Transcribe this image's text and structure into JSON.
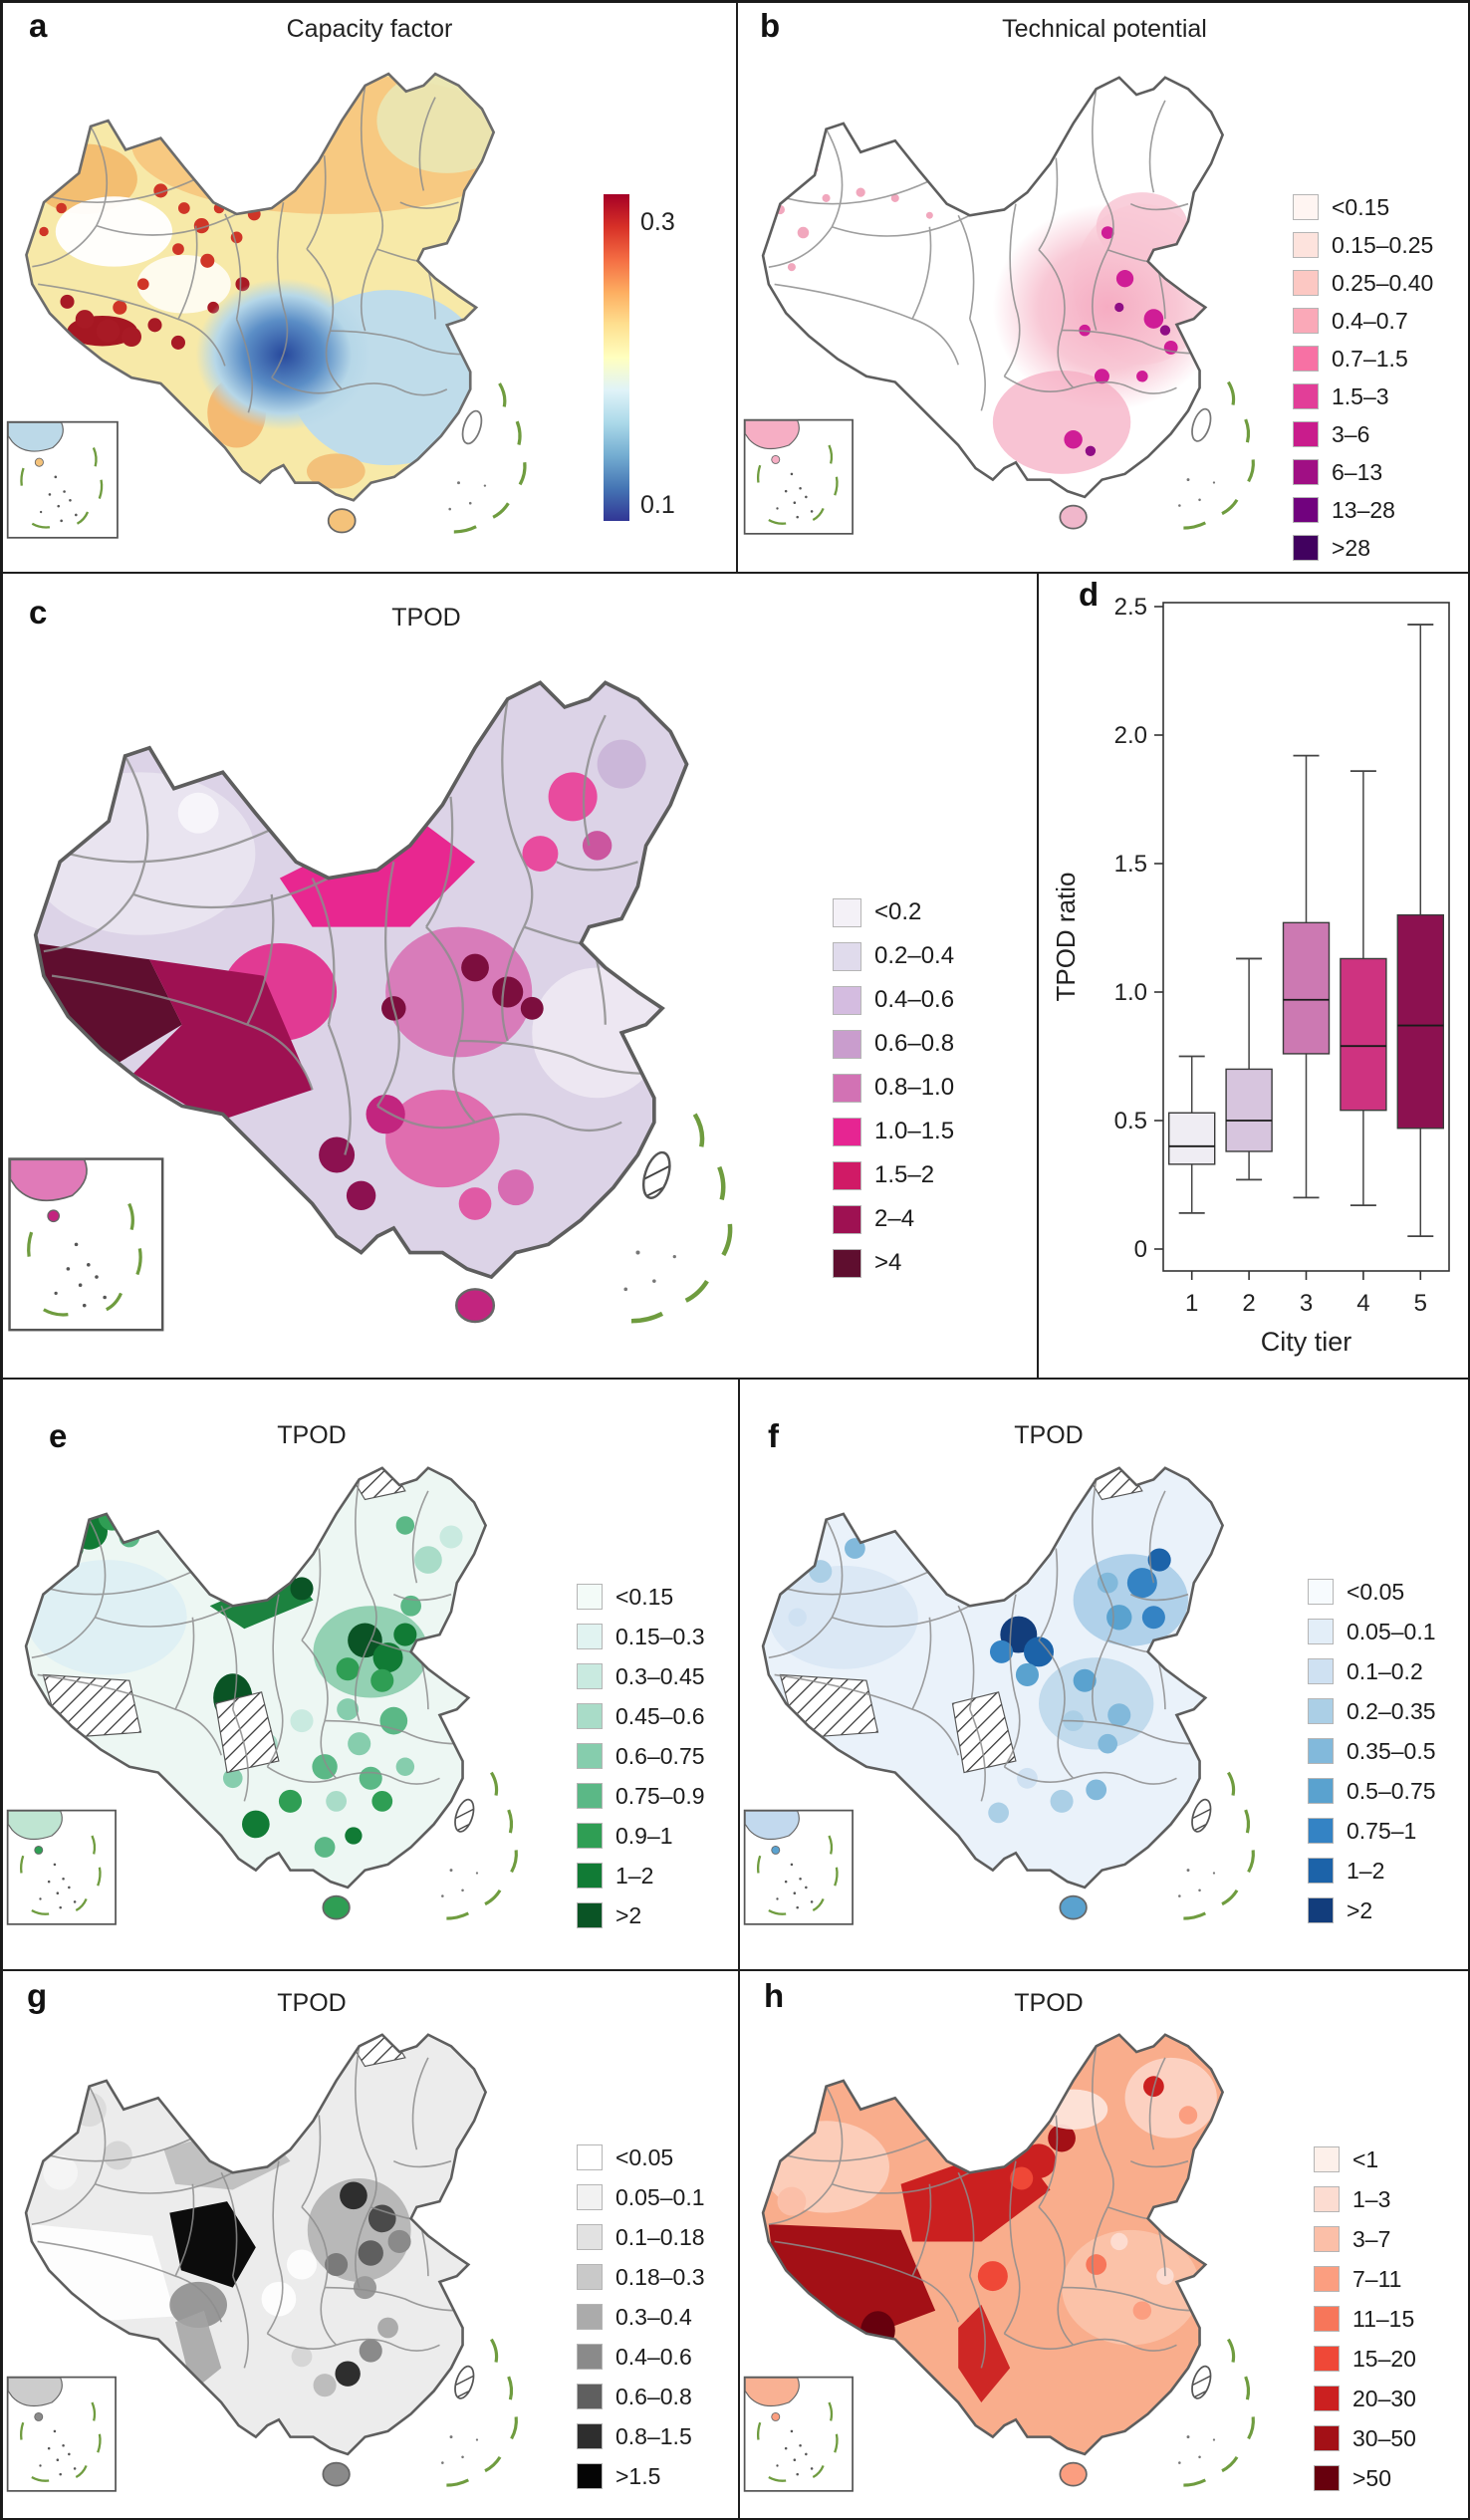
{
  "figure_caption": "",
  "panels": {
    "a": {
      "letter": "a",
      "title": "Capacity factor",
      "colorbar": {
        "top_label": "0.3",
        "bottom_label": "0.1",
        "min": 0.1,
        "max": 0.3,
        "colors": [
          "#a50026",
          "#d73027",
          "#f46d43",
          "#fdae61",
          "#fee090",
          "#ffffbf",
          "#e0f3f8",
          "#abd9e9",
          "#74add1",
          "#4575b4",
          "#313695"
        ]
      }
    },
    "b": {
      "letter": "b",
      "title": "Technical potential",
      "legend": [
        {
          "label": "<0.15",
          "color": "#fff5f2"
        },
        {
          "label": "0.15–0.25",
          "color": "#fde3dd"
        },
        {
          "label": "0.25–0.40",
          "color": "#fcc8c3"
        },
        {
          "label": "0.4–0.7",
          "color": "#faa9b8"
        },
        {
          "label": "0.7–1.5",
          "color": "#f771a4"
        },
        {
          "label": "1.5–3",
          "color": "#e23e98"
        },
        {
          "label": "3–6",
          "color": "#c91c8c"
        },
        {
          "label": "6–13",
          "color": "#a00f84"
        },
        {
          "label": "13–28",
          "color": "#71027e"
        },
        {
          "label": ">28",
          "color": "#41015f"
        }
      ]
    },
    "c": {
      "letter": "c",
      "title": "TPOD",
      "legend": [
        {
          "label": "<0.2",
          "color": "#f4f1f7"
        },
        {
          "label": "0.2–0.4",
          "color": "#e0dbec"
        },
        {
          "label": "0.4–0.6",
          "color": "#d4bce0"
        },
        {
          "label": "0.6–0.8",
          "color": "#c99dcd"
        },
        {
          "label": "0.8–1.0",
          "color": "#d272b4"
        },
        {
          "label": "1.0–1.5",
          "color": "#e62592"
        },
        {
          "label": "1.5–2",
          "color": "#d01a66"
        },
        {
          "label": "2–4",
          "color": "#9e1152"
        },
        {
          "label": ">4",
          "color": "#5f0e2f"
        }
      ]
    },
    "d": {
      "letter": "d",
      "ylabel": "TPOD ratio",
      "xlabel": "City tier",
      "ylim": [
        0,
        2.5
      ],
      "yticks": [
        "0",
        "0.5",
        "1.0",
        "1.5",
        "2.0",
        "2.5"
      ],
      "ytick_values": [
        0,
        0.5,
        1.0,
        1.5,
        2.0,
        2.5
      ],
      "categories": [
        "1",
        "2",
        "3",
        "4",
        "5"
      ],
      "boxes": [
        {
          "tier": "1",
          "whisker_low": 0.14,
          "q1": 0.33,
          "median": 0.4,
          "q3": 0.53,
          "whisker_high": 0.75,
          "color": "#efedf3"
        },
        {
          "tier": "2",
          "whisker_low": 0.27,
          "q1": 0.38,
          "median": 0.5,
          "q3": 0.7,
          "whisker_high": 1.13,
          "color": "#d7c5de"
        },
        {
          "tier": "3",
          "whisker_low": 0.2,
          "q1": 0.76,
          "median": 0.97,
          "q3": 1.27,
          "whisker_high": 1.92,
          "color": "#cc79b2"
        },
        {
          "tier": "4",
          "whisker_low": 0.17,
          "q1": 0.54,
          "median": 0.79,
          "q3": 1.13,
          "whisker_high": 1.86,
          "color": "#ce3380"
        },
        {
          "tier": "5",
          "whisker_low": 0.05,
          "q1": 0.47,
          "median": 0.87,
          "q3": 1.3,
          "whisker_high": 2.43,
          "color": "#8c1150"
        }
      ]
    },
    "e": {
      "letter": "e",
      "title": "TPOD",
      "legend": [
        {
          "label": "<0.15",
          "color": "#f3fbf8"
        },
        {
          "label": "0.15–0.3",
          "color": "#e1f3f1"
        },
        {
          "label": "0.3–0.45",
          "color": "#c9eae0"
        },
        {
          "label": "0.45–0.6",
          "color": "#a9dcc8"
        },
        {
          "label": "0.6–0.75",
          "color": "#86cdad"
        },
        {
          "label": "0.75–0.9",
          "color": "#5bb886"
        },
        {
          "label": "0.9–1",
          "color": "#2f9e54"
        },
        {
          "label": "1–2",
          "color": "#117b35"
        },
        {
          "label": ">2",
          "color": "#0a5425"
        }
      ]
    },
    "f": {
      "letter": "f",
      "title": "TPOD",
      "legend": [
        {
          "label": "<0.05",
          "color": "#f7fbfe"
        },
        {
          "label": "0.05–0.1",
          "color": "#e3eef8"
        },
        {
          "label": "0.1–0.2",
          "color": "#cfe1f2"
        },
        {
          "label": "0.2–0.35",
          "color": "#abcfe6"
        },
        {
          "label": "0.35–0.5",
          "color": "#82b9db"
        },
        {
          "label": "0.5–0.75",
          "color": "#5aa2cf"
        },
        {
          "label": "0.75–1",
          "color": "#3483c4"
        },
        {
          "label": "1–2",
          "color": "#1c63a9"
        },
        {
          "label": ">2",
          "color": "#123d7c"
        }
      ]
    },
    "g": {
      "letter": "g",
      "title": "TPOD",
      "legend": [
        {
          "label": "<0.05",
          "color": "#ffffff"
        },
        {
          "label": "0.05–0.1",
          "color": "#f2f2f2"
        },
        {
          "label": "0.1–0.18",
          "color": "#e2e2e2"
        },
        {
          "label": "0.18–0.3",
          "color": "#c9c9c9"
        },
        {
          "label": "0.3–0.4",
          "color": "#ababab"
        },
        {
          "label": "0.4–0.6",
          "color": "#8a8a8a"
        },
        {
          "label": "0.6–0.8",
          "color": "#5f5f5f"
        },
        {
          "label": "0.8–1.5",
          "color": "#2e2e2e"
        },
        {
          "label": ">1.5",
          "color": "#050505"
        }
      ]
    },
    "h": {
      "letter": "h",
      "title": "TPOD",
      "legend": [
        {
          "label": "<1",
          "color": "#fdf0ea"
        },
        {
          "label": "1–3",
          "color": "#fcdcd1"
        },
        {
          "label": "3–7",
          "color": "#fbbfa8"
        },
        {
          "label": "7–11",
          "color": "#fb9e80"
        },
        {
          "label": "11–15",
          "color": "#f7765a"
        },
        {
          "label": "15–20",
          "color": "#ef4837"
        },
        {
          "label": "20–30",
          "color": "#cb2020"
        },
        {
          "label": "30–50",
          "color": "#a31016"
        },
        {
          "label": ">50",
          "color": "#67000d"
        }
      ]
    }
  },
  "chart_data": [
    {
      "panel": "a",
      "type": "heatmap",
      "title": "Capacity factor",
      "region": "China",
      "colorbar": {
        "min": 0.1,
        "max": 0.3,
        "tick_labels": [
          "0.3",
          "0.1"
        ],
        "colormap": "red-yellow-blue (high=red 0.3, low=blue 0.1)"
      },
      "pattern": "high capacity factor (red/orange) in Tibet, Qinghai and the north/northeast; low (blue) over the Sichuan basin and southern China"
    },
    {
      "panel": "b",
      "type": "heatmap",
      "title": "Technical potential",
      "region": "China",
      "legend_bins": [
        "<0.15",
        "0.15–0.25",
        "0.25–0.40",
        "0.4–0.7",
        "0.7–1.5",
        "1.5–3",
        "3–6",
        "6–13",
        "13–28",
        ">28"
      ],
      "pattern": "near-zero in the west, rising pink-to-purple values over eastern and southern China"
    },
    {
      "panel": "c",
      "type": "choropleth",
      "title": "TPOD",
      "region": "China, prefecture level",
      "legend_bins": [
        "<0.2",
        "0.2–0.4",
        "0.4–0.6",
        "0.6–0.8",
        "0.8–1.0",
        "1.0–1.5",
        "1.5–2",
        "2–4",
        ">4"
      ],
      "pattern": "darkest (>4) in far-western Tibet, 2–4 across Tibet/Qinghai, 1.0–1.5 across Gansu/Inner Mongolia, mixed pinks in centre-east, light lavender in Xinjiang and northeast; Taiwan hatched"
    },
    {
      "panel": "d",
      "type": "box",
      "title": "",
      "xlabel": "City tier",
      "ylabel": "TPOD ratio",
      "ylim": [
        0,
        2.5
      ],
      "categories": [
        "1",
        "2",
        "3",
        "4",
        "5"
      ],
      "series": [
        {
          "name": "tier 1",
          "whisker_low": 0.14,
          "q1": 0.33,
          "median": 0.4,
          "q3": 0.53,
          "whisker_high": 0.75
        },
        {
          "name": "tier 2",
          "whisker_low": 0.27,
          "q1": 0.38,
          "median": 0.5,
          "q3": 0.7,
          "whisker_high": 1.13
        },
        {
          "name": "tier 3",
          "whisker_low": 0.2,
          "q1": 0.76,
          "median": 0.97,
          "q3": 1.27,
          "whisker_high": 1.92
        },
        {
          "name": "tier 4",
          "whisker_low": 0.17,
          "q1": 0.54,
          "median": 0.79,
          "q3": 1.13,
          "whisker_high": 1.86
        },
        {
          "name": "tier 5",
          "whisker_low": 0.05,
          "q1": 0.47,
          "median": 0.87,
          "q3": 1.3,
          "whisker_high": 2.43
        }
      ]
    },
    {
      "panel": "e",
      "type": "choropleth",
      "title": "TPOD",
      "region": "China, prefecture level",
      "legend_bins": [
        "<0.15",
        "0.15–0.3",
        "0.3–0.45",
        "0.45–0.6",
        "0.6–0.75",
        "0.75–0.9",
        "0.9–1",
        "1–2",
        ">2"
      ],
      "pattern": "dark green in northern Xinjiang, Gansu corridor and the Beijing–Hebei–Shandong cluster; pale mint elsewhere; hatched no-data areas in the west, centre and far north; Taiwan hatched"
    },
    {
      "panel": "f",
      "type": "choropleth",
      "title": "TPOD",
      "region": "China, prefecture level",
      "legend_bins": [
        "<0.05",
        "0.05–0.1",
        "0.1–0.2",
        "0.2–0.35",
        "0.35–0.5",
        "0.5–0.75",
        "0.75–1",
        "1–2",
        ">2"
      ],
      "pattern": "dark blue cluster around Ningxia/Shaanxi and in the northeast; light blues elsewhere; hatched no-data areas; Taiwan hatched"
    },
    {
      "panel": "g",
      "type": "choropleth",
      "title": "TPOD",
      "region": "China, prefecture level",
      "legend_bins": [
        "<0.05",
        "0.05–0.1",
        "0.1–0.18",
        "0.18–0.3",
        "0.3–0.4",
        "0.4–0.6",
        "0.6–0.8",
        "0.8–1.5",
        ">1.5"
      ],
      "pattern": "black (>1.5) blob over Qinghai, dark grays through the densely populated centre-east, white Tibet and light-gray Xinjiang; Taiwan hatched"
    },
    {
      "panel": "h",
      "type": "choropleth",
      "title": "TPOD",
      "region": "China, prefecture level",
      "legend_bins": [
        "<1",
        "1–3",
        "3–7",
        "7–11",
        "11–15",
        "15–20",
        "20–30",
        "30–50",
        ">50"
      ],
      "pattern": "dark red (30–50) across Tibet with a >50 pocket in the south, 20–30 over Qinghai/Gansu, salmon mid-tones across the north, light pinks in the east; Taiwan hatched"
    }
  ]
}
